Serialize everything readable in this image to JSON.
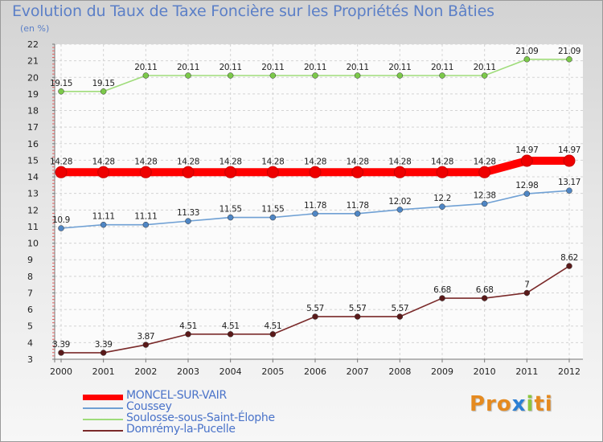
{
  "title": "Evolution du Taux de Taxe Foncière sur les Propriétés Non Bâties",
  "subtitle": "(en %)",
  "logo": {
    "parts": [
      "Pro",
      "x",
      "i",
      "ti"
    ],
    "colors": [
      "#e58a1f",
      "#2b7fd4",
      "#8cc63f",
      "#e58a1f"
    ]
  },
  "chart_data": {
    "type": "line",
    "title": "Evolution du Taux de Taxe Foncière sur les Propriétés Non Bâties",
    "ylabel": "(en %)",
    "x": [
      2000,
      2001,
      2002,
      2003,
      2004,
      2005,
      2006,
      2007,
      2008,
      2009,
      2010,
      2011,
      2012
    ],
    "ylim": [
      3,
      22
    ],
    "yticks": [
      3,
      4,
      5,
      6,
      7,
      8,
      9,
      10,
      11,
      12,
      13,
      14,
      15,
      16,
      17,
      18,
      19,
      20,
      21,
      22
    ],
    "grid": true,
    "legend_position": "bottom-left",
    "series": [
      {
        "name": "MONCEL-SUR-VAIR",
        "color": "#ff0000",
        "marker": "#ee0000",
        "bold": true,
        "values": [
          14.28,
          14.28,
          14.28,
          14.28,
          14.28,
          14.28,
          14.28,
          14.28,
          14.28,
          14.28,
          14.28,
          14.97,
          14.97
        ],
        "labels": [
          "14.28",
          "14.28",
          "14.28",
          "14.28",
          "14.28",
          "14.28",
          "14.28",
          "14.28",
          "14.28",
          "14.28",
          "14.28",
          "14.97",
          "14.97"
        ]
      },
      {
        "name": "Coussey",
        "color": "#6fa0d4",
        "marker": "#4f86c4",
        "bold": false,
        "values": [
          10.9,
          11.11,
          11.11,
          11.33,
          11.55,
          11.55,
          11.78,
          11.78,
          12.02,
          12.2,
          12.38,
          12.98,
          13.17
        ],
        "labels": [
          "10.9",
          "11.11",
          "11.11",
          "11.33",
          "11.55",
          "11.55",
          "11.78",
          "11.78",
          "12.02",
          "12.2",
          "12.38",
          "12.98",
          "13.17"
        ]
      },
      {
        "name": "Soulosse-sous-Saint-Élophe",
        "color": "#9fdc7a",
        "marker": "#7cc94a",
        "bold": false,
        "values": [
          19.15,
          19.15,
          20.11,
          20.11,
          20.11,
          20.11,
          20.11,
          20.11,
          20.11,
          20.11,
          20.11,
          21.09,
          21.09
        ],
        "labels": [
          "19.15",
          "19.15",
          "20.11",
          "20.11",
          "20.11",
          "20.11",
          "20.11",
          "20.11",
          "20.11",
          "20.11",
          "20.11",
          "21.09",
          "21.09"
        ]
      },
      {
        "name": "Domrémy-la-Pucelle",
        "color": "#7a2a2a",
        "marker": "#5a1a1a",
        "bold": false,
        "values": [
          3.39,
          3.39,
          3.87,
          4.51,
          4.51,
          4.51,
          5.57,
          5.57,
          5.57,
          6.68,
          6.68,
          7,
          8.62
        ],
        "labels": [
          "3.39",
          "3.39",
          "3.87",
          "4.51",
          "4.51",
          "4.51",
          "5.57",
          "5.57",
          "5.57",
          "6.68",
          "6.68",
          "7",
          "8.62"
        ]
      }
    ]
  }
}
